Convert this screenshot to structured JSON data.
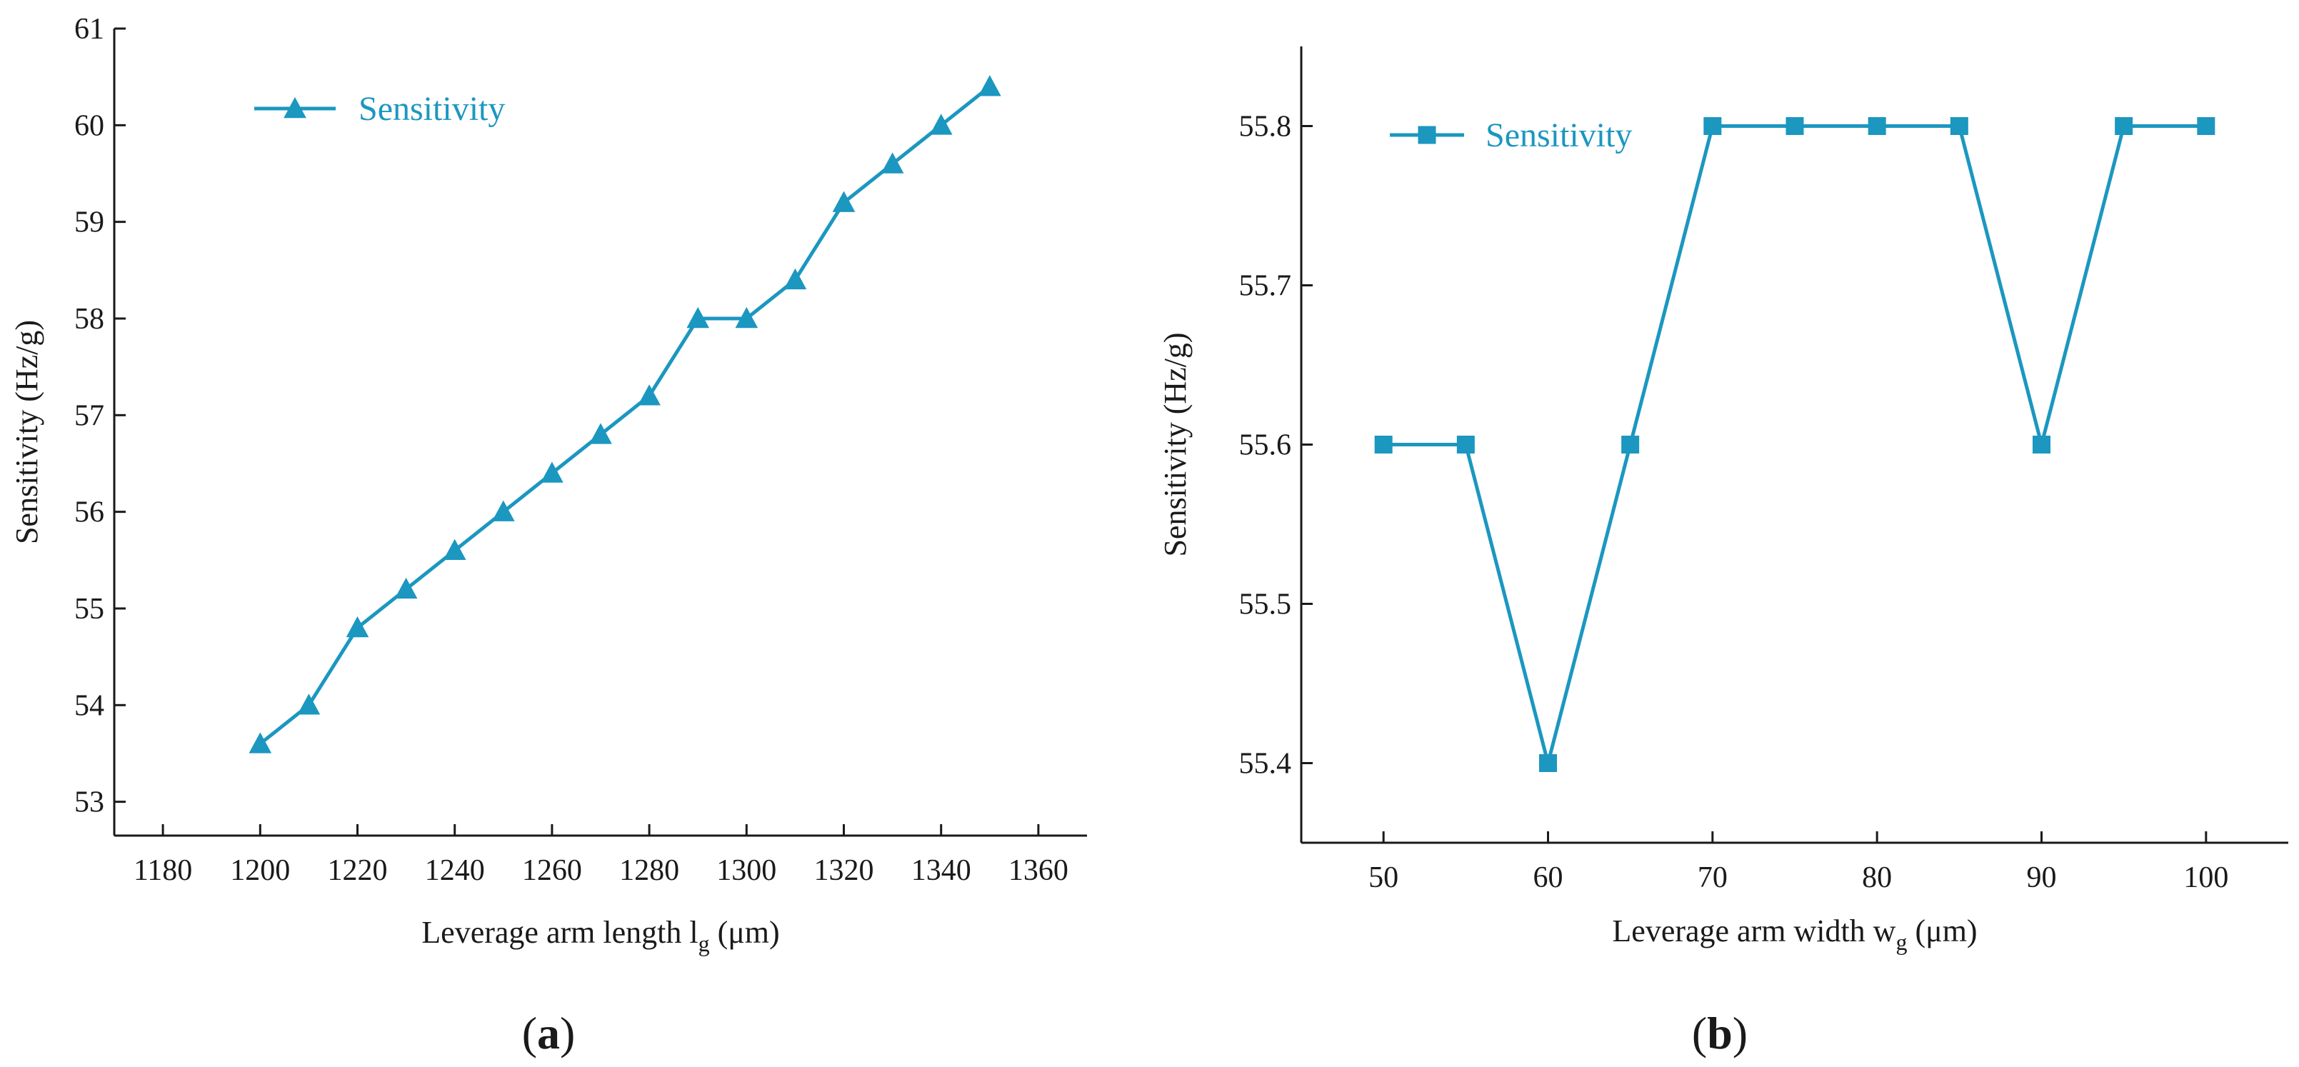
{
  "figure": {
    "series_color": "#1b97c0",
    "axis_color": "#1a1a1a",
    "background": "#ffffff"
  },
  "chart_data": [
    {
      "panel": "a",
      "panel_label": "a",
      "type": "line",
      "marker": "triangle",
      "title": "",
      "xlabel_main": "Leverage arm length l",
      "xlabel_sub": "g",
      "xlabel_unit": " (μm)",
      "ylabel": "Sensitivity (Hz/g)",
      "xlim": [
        1170,
        1370
      ],
      "ylim": [
        52.65,
        61
      ],
      "xticks": [
        1180,
        1200,
        1220,
        1240,
        1260,
        1280,
        1300,
        1320,
        1340,
        1360
      ],
      "yticks": [
        53,
        54,
        55,
        56,
        57,
        58,
        59,
        60,
        61
      ],
      "legend": "top-left",
      "series": [
        {
          "name": "Sensitivity",
          "x": [
            1200,
            1210,
            1220,
            1230,
            1240,
            1250,
            1260,
            1270,
            1280,
            1290,
            1300,
            1310,
            1320,
            1330,
            1340,
            1350
          ],
          "values": [
            53.6,
            54.0,
            54.8,
            55.2,
            55.6,
            56.0,
            56.4,
            56.8,
            57.2,
            58.0,
            58.0,
            58.4,
            59.2,
            59.6,
            60.0,
            60.4
          ]
        }
      ]
    },
    {
      "panel": "b",
      "panel_label": "b",
      "type": "line",
      "marker": "square",
      "title": "",
      "xlabel_main": "Leverage arm width w",
      "xlabel_sub": "g",
      "xlabel_unit": " (μm)",
      "ylabel": "Sensitivity (Hz/g)",
      "xlim": [
        45,
        105
      ],
      "ylim": [
        55.35,
        55.85
      ],
      "xticks": [
        50,
        60,
        70,
        80,
        90,
        100
      ],
      "yticks": [
        55.4,
        55.5,
        55.6,
        55.7,
        55.8
      ],
      "legend": "top-left",
      "series": [
        {
          "name": "Sensitivity",
          "x": [
            50,
            55,
            60,
            65,
            70,
            75,
            80,
            85,
            90,
            95,
            100
          ],
          "values": [
            55.6,
            55.6,
            55.4,
            55.6,
            55.8,
            55.8,
            55.8,
            55.8,
            55.6,
            55.8,
            55.8
          ]
        }
      ]
    }
  ]
}
